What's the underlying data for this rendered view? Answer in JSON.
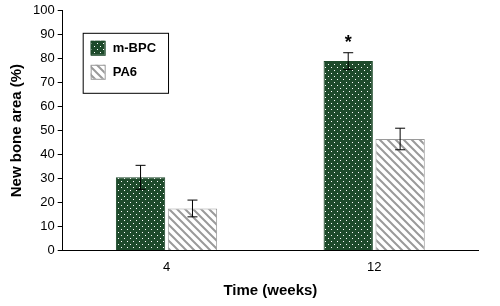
{
  "chart_data": {
    "type": "bar",
    "categories": [
      "4",
      "12"
    ],
    "series": [
      {
        "name": "m-BPC",
        "color": "#1e4a2b",
        "values": [
          30.5,
          79
        ],
        "errors": [
          5,
          3.5
        ]
      },
      {
        "name": "PA6",
        "color": "#9a9a9a",
        "values": [
          17.5,
          46.5
        ],
        "errors": [
          3.5,
          4.5
        ]
      }
    ],
    "x_label": "Time (weeks)",
    "y_label": "New bone area (%)",
    "ylim": [
      0,
      100
    ],
    "yticks": [
      0,
      10,
      20,
      30,
      40,
      50,
      60,
      70,
      80,
      90,
      100
    ],
    "grid": false,
    "legend": "upper left",
    "annotations": [
      {
        "text": "*",
        "series": "m-BPC",
        "category": "12"
      }
    ]
  }
}
